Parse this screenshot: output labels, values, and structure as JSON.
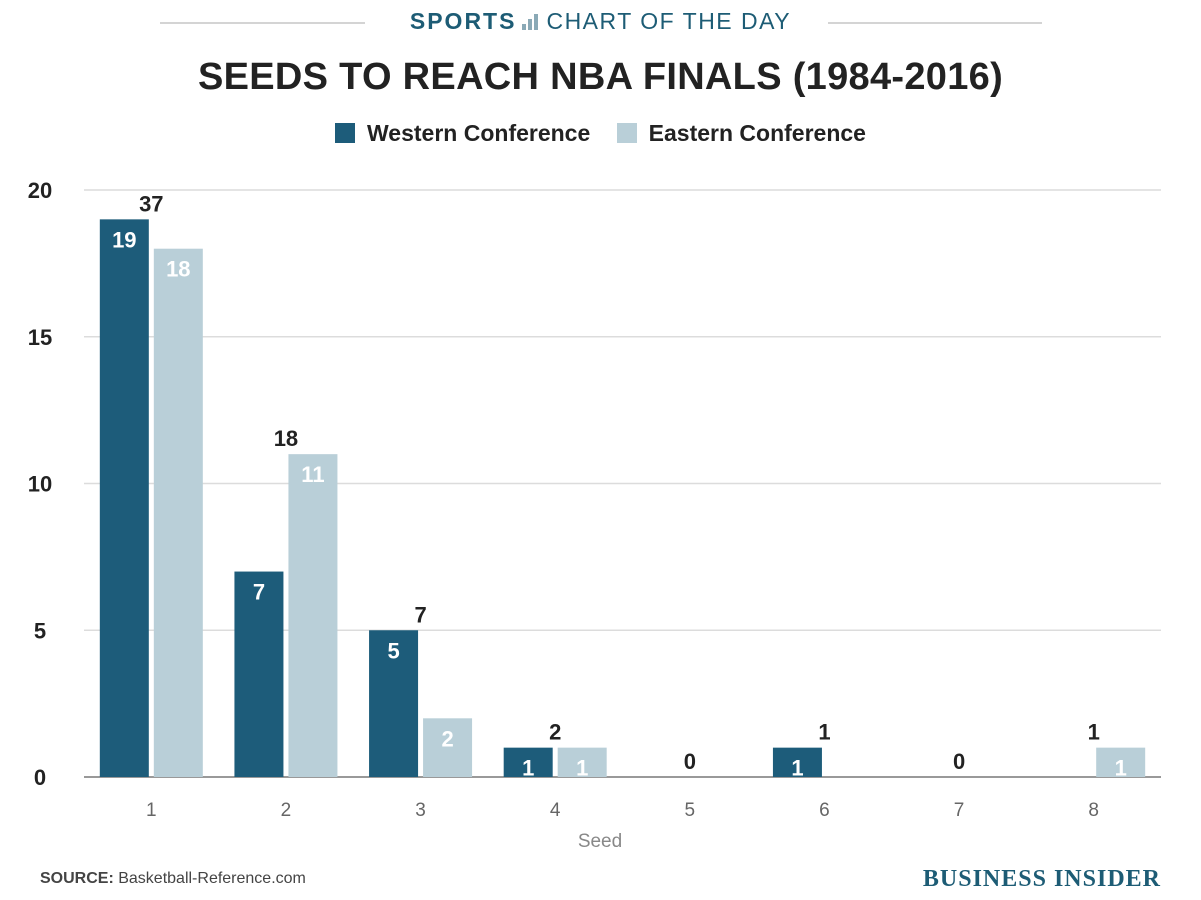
{
  "banner": {
    "sports": "SPORTS",
    "chart_of_the_day": "CHART OF THE DAY",
    "icon": "bar-chart-icon"
  },
  "chart_data": {
    "type": "bar",
    "title": "SEEDS TO REACH NBA FINALS (1984-2016)",
    "xlabel": "Seed",
    "ylabel": "",
    "categories": [
      "1",
      "2",
      "3",
      "4",
      "5",
      "6",
      "7",
      "8"
    ],
    "series": [
      {
        "name": "Western Conference",
        "color": "#1d5c7a",
        "values": [
          19,
          7,
          5,
          1,
          0,
          1,
          0,
          0
        ]
      },
      {
        "name": "Eastern Conference",
        "color": "#b9cfd8",
        "values": [
          18,
          11,
          2,
          1,
          0,
          0,
          0,
          1
        ]
      }
    ],
    "totals": [
      37,
      18,
      7,
      2,
      0,
      1,
      0,
      1
    ],
    "ylim": [
      0,
      20
    ],
    "yticks": [
      0,
      5,
      10,
      15,
      20
    ],
    "grid": true,
    "legend": "top-center"
  },
  "footer": {
    "source_label": "SOURCE:",
    "source_text": "Basketball-Reference.com",
    "logo": "BUSINESS INSIDER"
  }
}
